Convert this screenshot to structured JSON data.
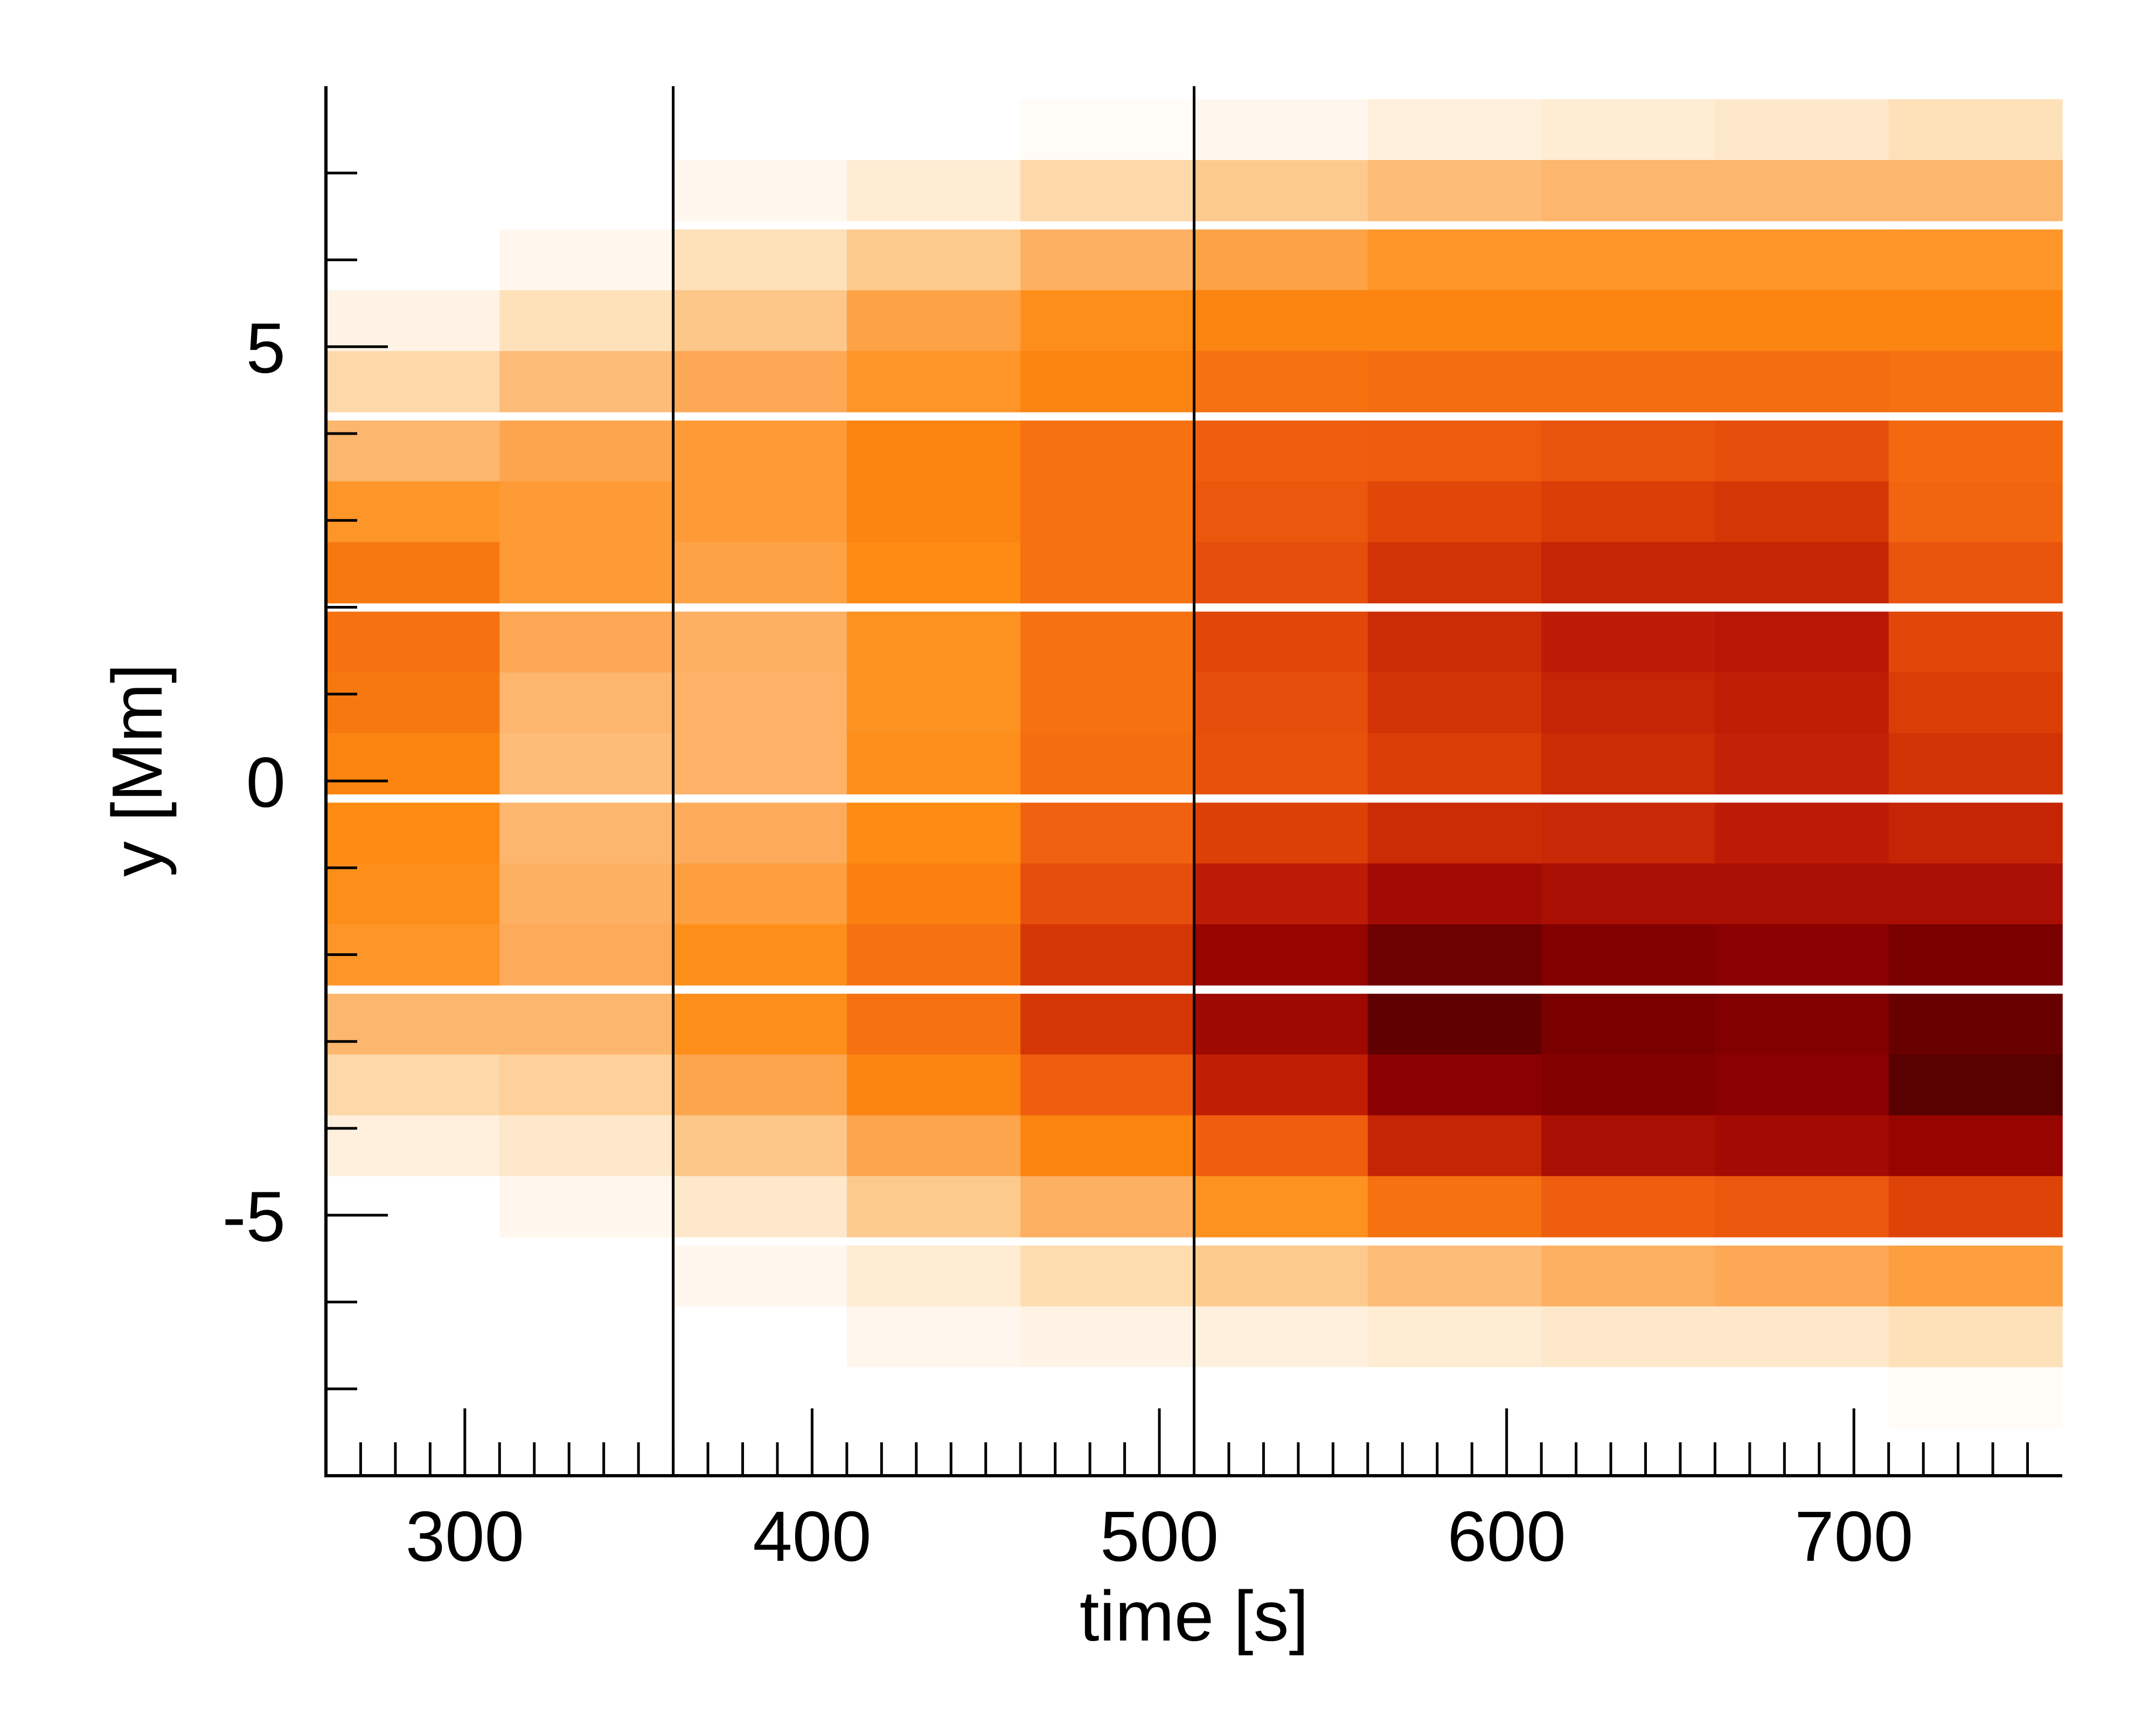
{
  "chart_data": {
    "type": "heatmap",
    "title": "",
    "xlabel": "time [s]",
    "ylabel": "y [Mm]",
    "xlim": [
      260,
      760
    ],
    "ylim": [
      -8,
      8
    ],
    "x_ticks": [
      {
        "value": 300,
        "label": "300"
      },
      {
        "value": 400,
        "label": "400"
      },
      {
        "value": 500,
        "label": "500"
      },
      {
        "value": 600,
        "label": "600"
      },
      {
        "value": 700,
        "label": "700"
      }
    ],
    "y_ticks": [
      {
        "value": 5,
        "label": "5"
      },
      {
        "value": 0,
        "label": "0"
      },
      {
        "value": -5,
        "label": "-5"
      }
    ],
    "colormap": [
      "#ffffff",
      "#fdd49e",
      "#fdae61",
      "#fe8a10",
      "#f06010",
      "#d93b05",
      "#b71505",
      "#8c0000",
      "#5c0000",
      "#3a0000"
    ],
    "vertical_lines": [
      360,
      510
    ],
    "x_cells": [
      285,
      335,
      385,
      435,
      485,
      535,
      585,
      635,
      685,
      735
    ],
    "y_cells": [
      7.5,
      6.8,
      6.0,
      5.3,
      4.6,
      3.8,
      3.1,
      2.4,
      1.6,
      0.9,
      0.2,
      -0.6,
      -1.3,
      -2.0,
      -2.8,
      -3.5,
      -4.2,
      -4.9,
      -5.7,
      -6.4,
      -7.1
    ],
    "values": [
      [
        0.0,
        0.0,
        0.0,
        0.0,
        0.01,
        0.02,
        0.04,
        0.05,
        0.06,
        0.08
      ],
      [
        0.0,
        0.0,
        0.02,
        0.05,
        0.1,
        0.14,
        0.18,
        0.2,
        0.2,
        0.2
      ],
      [
        0.0,
        0.02,
        0.08,
        0.14,
        0.22,
        0.26,
        0.3,
        0.3,
        0.3,
        0.3
      ],
      [
        0.03,
        0.08,
        0.15,
        0.26,
        0.32,
        0.35,
        0.35,
        0.35,
        0.35,
        0.35
      ],
      [
        0.1,
        0.18,
        0.24,
        0.3,
        0.35,
        0.4,
        0.41,
        0.41,
        0.41,
        0.4
      ],
      [
        0.2,
        0.25,
        0.28,
        0.35,
        0.4,
        0.45,
        0.46,
        0.48,
        0.5,
        0.42
      ],
      [
        0.3,
        0.28,
        0.28,
        0.35,
        0.4,
        0.47,
        0.52,
        0.55,
        0.57,
        0.43
      ],
      [
        0.38,
        0.28,
        0.26,
        0.33,
        0.4,
        0.5,
        0.58,
        0.62,
        0.62,
        0.48
      ],
      [
        0.4,
        0.24,
        0.22,
        0.31,
        0.4,
        0.52,
        0.6,
        0.65,
        0.66,
        0.52
      ],
      [
        0.38,
        0.2,
        0.21,
        0.31,
        0.4,
        0.5,
        0.58,
        0.62,
        0.64,
        0.55
      ],
      [
        0.35,
        0.18,
        0.21,
        0.32,
        0.41,
        0.49,
        0.55,
        0.6,
        0.63,
        0.58
      ],
      [
        0.33,
        0.2,
        0.23,
        0.33,
        0.44,
        0.54,
        0.6,
        0.61,
        0.65,
        0.62
      ],
      [
        0.32,
        0.22,
        0.27,
        0.36,
        0.5,
        0.65,
        0.72,
        0.7,
        0.7,
        0.7
      ],
      [
        0.3,
        0.23,
        0.32,
        0.4,
        0.57,
        0.75,
        0.85,
        0.8,
        0.78,
        0.82
      ],
      [
        0.2,
        0.2,
        0.32,
        0.4,
        0.57,
        0.73,
        0.88,
        0.82,
        0.8,
        0.86
      ],
      [
        0.1,
        0.12,
        0.25,
        0.35,
        0.45,
        0.64,
        0.78,
        0.8,
        0.78,
        0.9
      ],
      [
        0.04,
        0.06,
        0.15,
        0.25,
        0.35,
        0.45,
        0.62,
        0.7,
        0.72,
        0.75
      ],
      [
        0.0,
        0.02,
        0.06,
        0.14,
        0.22,
        0.31,
        0.4,
        0.45,
        0.47,
        0.53
      ],
      [
        0.0,
        0.0,
        0.02,
        0.05,
        0.09,
        0.14,
        0.18,
        0.22,
        0.24,
        0.27
      ],
      [
        0.0,
        0.0,
        0.0,
        0.02,
        0.03,
        0.04,
        0.05,
        0.06,
        0.06,
        0.08
      ],
      [
        0.0,
        0.0,
        0.0,
        0.0,
        0.0,
        0.0,
        0.0,
        0.0,
        0.0,
        0.01
      ]
    ]
  }
}
